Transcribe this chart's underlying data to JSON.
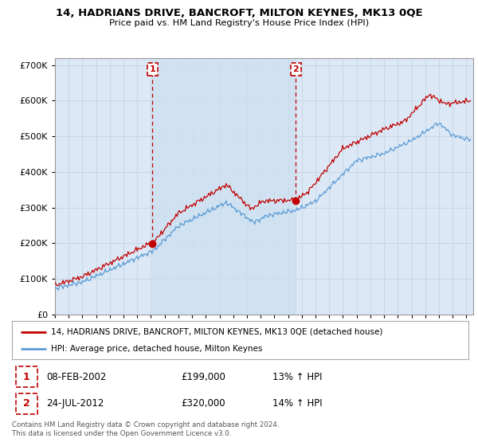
{
  "title": "14, HADRIANS DRIVE, BANCROFT, MILTON KEYNES, MK13 0QE",
  "subtitle": "Price paid vs. HM Land Registry's House Price Index (HPI)",
  "ylim": [
    0,
    720000
  ],
  "xlim_start": 1995.0,
  "xlim_end": 2025.5,
  "purchase1_date": 2002.1,
  "purchase1_price": 199000,
  "purchase2_date": 2012.56,
  "purchase2_price": 320000,
  "legend_line1": "14, HADRIANS DRIVE, BANCROFT, MILTON KEYNES, MK13 0QE (detached house)",
  "legend_line2": "HPI: Average price, detached house, Milton Keynes",
  "table_row1": [
    "1",
    "08-FEB-2002",
    "£199,000",
    "13% ↑ HPI"
  ],
  "table_row2": [
    "2",
    "24-JUL-2012",
    "£320,000",
    "14% ↑ HPI"
  ],
  "footer": "Contains HM Land Registry data © Crown copyright and database right 2024.\nThis data is licensed under the Open Government Licence v3.0.",
  "hpi_color": "#5b9bd5",
  "price_color": "#c00000",
  "bg_color": "#dce8f5",
  "shade_color": "#cce0f0",
  "grid_color": "#c8d8e8",
  "annotation_box_color": "#c00000",
  "fig_bg": "#ffffff"
}
